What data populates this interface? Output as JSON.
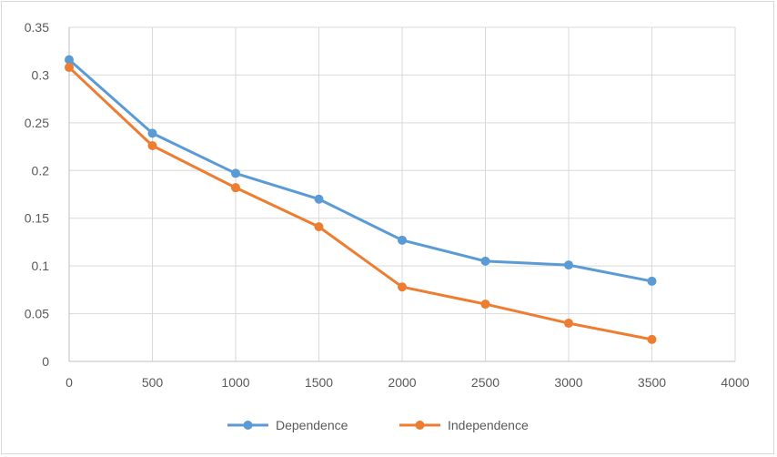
{
  "chart_data": {
    "type": "line",
    "title": "",
    "xlabel": "",
    "ylabel": "",
    "xlim": [
      0,
      4000
    ],
    "ylim": [
      0,
      0.35
    ],
    "x_ticks": [
      0,
      500,
      1000,
      1500,
      2000,
      2500,
      3000,
      3500,
      4000
    ],
    "x_tick_labels": [
      "0",
      "500",
      "1000",
      "1500",
      "2000",
      "2500",
      "3000",
      "3500",
      "4000"
    ],
    "y_ticks": [
      0,
      0.05,
      0.1,
      0.15,
      0.2,
      0.25,
      0.3,
      0.35
    ],
    "y_tick_labels": [
      "0",
      "0.05",
      "0.1",
      "0.15",
      "0.2",
      "0.25",
      "0.3",
      "0.35"
    ],
    "grid": true,
    "legend_position": "bottom",
    "x": [
      0,
      500,
      1000,
      1500,
      2000,
      2500,
      3000,
      3500
    ],
    "series": [
      {
        "name": "Dependence",
        "color": "#5b9bd5",
        "values": [
          0.316,
          0.239,
          0.197,
          0.17,
          0.127,
          0.105,
          0.101,
          0.084
        ]
      },
      {
        "name": "Independence",
        "color": "#ed7d31",
        "values": [
          0.308,
          0.226,
          0.182,
          0.141,
          0.078,
          0.06,
          0.04,
          0.023
        ]
      }
    ]
  }
}
